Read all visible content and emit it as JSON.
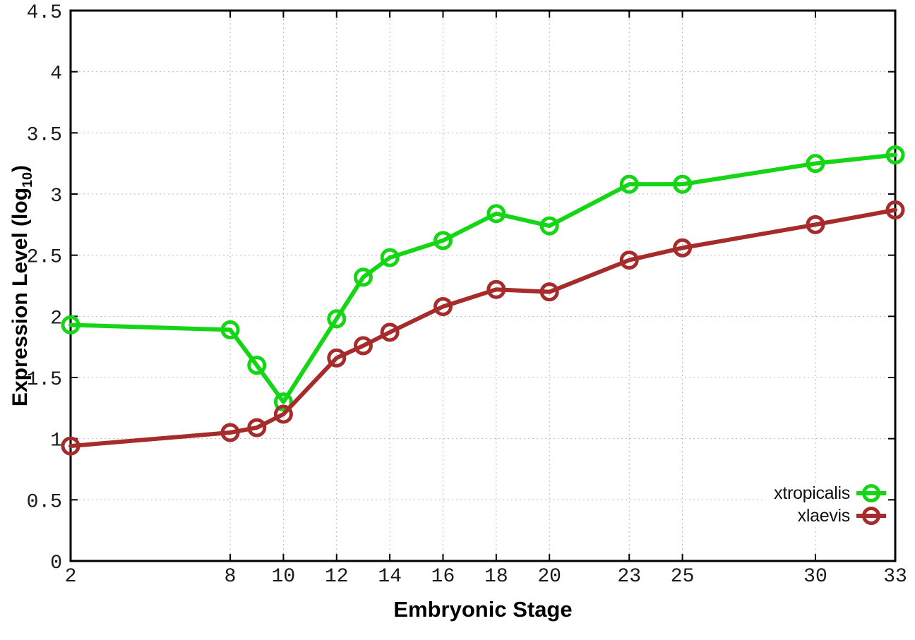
{
  "chart_data": {
    "type": "line",
    "title": "",
    "xlabel": "Embryonic Stage",
    "ylabel": "Expression Level (log10)",
    "ylabel_parts": {
      "main": "Expression Level (log",
      "sub": "10",
      "close": ")"
    },
    "xlim": [
      2,
      33
    ],
    "ylim": [
      0,
      4.5
    ],
    "xticks": [
      2,
      8,
      10,
      12,
      14,
      16,
      18,
      20,
      23,
      25,
      30,
      33
    ],
    "yticks": [
      0,
      0.5,
      1,
      1.5,
      2,
      2.5,
      3,
      3.5,
      4,
      4.5
    ],
    "grid": true,
    "grid_style": "dotted",
    "legend_position": "inside-bottom-right",
    "legend_opaque": true,
    "marker": "open-circle",
    "x": [
      2,
      8,
      9,
      10,
      12,
      13,
      14,
      16,
      18,
      20,
      23,
      25,
      30,
      33
    ],
    "series": [
      {
        "name": "xtropicalis",
        "color": "#15d615",
        "values": [
          1.93,
          1.89,
          1.6,
          1.3,
          1.98,
          2.32,
          2.48,
          2.62,
          2.84,
          2.74,
          3.08,
          3.08,
          3.25,
          3.32
        ]
      },
      {
        "name": "xlaevis",
        "color": "#a62c2c",
        "values": [
          0.94,
          1.05,
          1.09,
          1.2,
          1.66,
          1.76,
          1.87,
          2.08,
          2.22,
          2.2,
          2.46,
          2.56,
          2.75,
          2.87
        ]
      }
    ],
    "axis_color": "#000000",
    "gridline_color": "#b9b9b9",
    "tick_label_color": "#1a1a1a"
  }
}
